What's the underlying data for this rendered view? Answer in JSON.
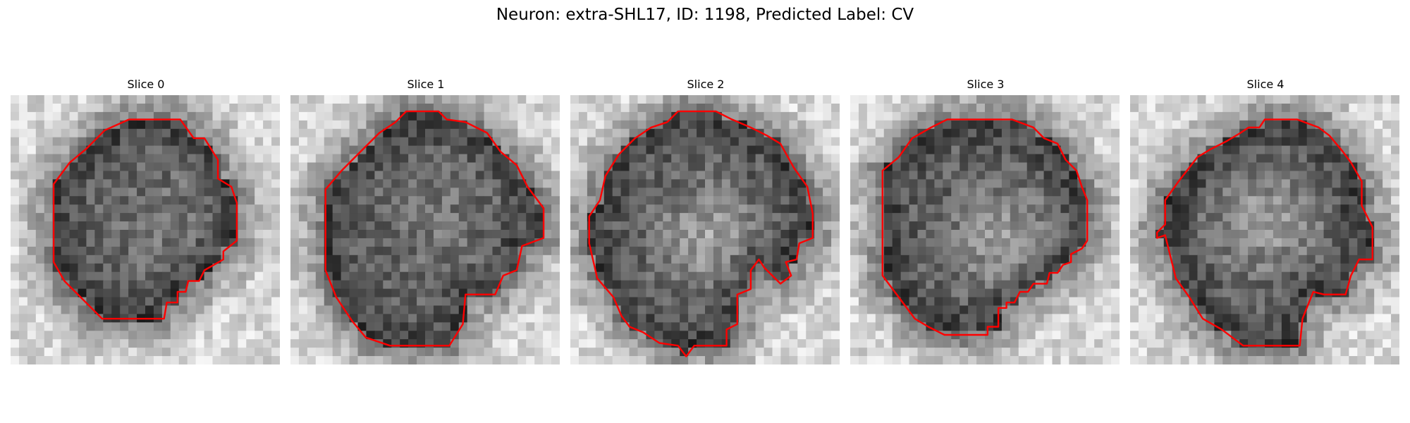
{
  "figure": {
    "title": "Neuron: extra-SHL17, ID: 1198, Predicted Label: CV",
    "contour_color": "#ff0000",
    "panels": [
      {
        "label": "Slice 0"
      },
      {
        "label": "Slice 1"
      },
      {
        "label": "Slice 2"
      },
      {
        "label": "Slice 3"
      },
      {
        "label": "Slice 4"
      }
    ]
  }
}
